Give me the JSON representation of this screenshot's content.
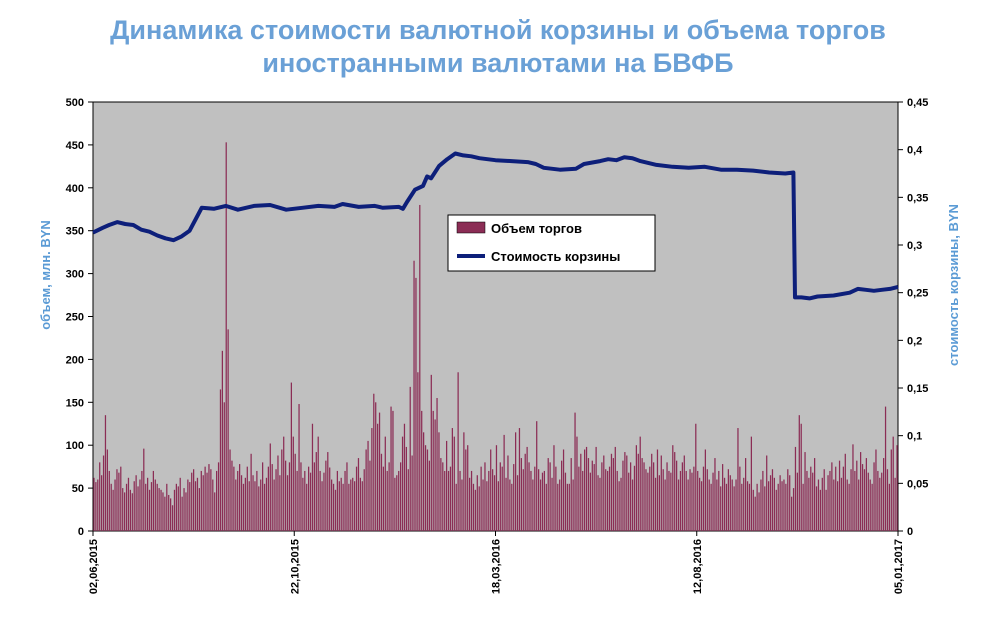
{
  "chart_data": {
    "type": "bar+line",
    "title_line1": "Динамика стоимости валютной корзины и объема торгов",
    "title_line2": "иностранными валютами на БВФБ",
    "ylabel_left": "объем, млн. BYN",
    "ylabel_right": "стоимость корзины, BYN",
    "ylim_left": [
      0,
      500
    ],
    "ylim_right": [
      0,
      0.45
    ],
    "yticks_left": [
      "0",
      "50",
      "100",
      "150",
      "200",
      "250",
      "300",
      "350",
      "400",
      "450",
      "500"
    ],
    "yticks_right": [
      "0",
      "0,05",
      "0,1",
      "0,15",
      "0,2",
      "0,25",
      "0,3",
      "0,35",
      "0,4",
      "0,45"
    ],
    "xticks": [
      "02,06,2015",
      "22,10,2015",
      "18,03,2016",
      "12,08,2016",
      "05,01,2017"
    ],
    "grid": false,
    "legend_position": "center",
    "legend": {
      "bars": "Объем торгов",
      "line": "Стоимость корзины"
    },
    "colors": {
      "bars": "#8b2d55",
      "line": "#0d1f7a",
      "plot_bg": "#c0c0c0"
    },
    "series": [
      {
        "name": "Объем торгов",
        "kind": "bar",
        "axis": "left",
        "values": [
          62,
          57,
          60,
          80,
          65,
          88,
          135,
          95,
          70,
          55,
          48,
          60,
          72,
          68,
          75,
          50,
          45,
          55,
          62,
          48,
          44,
          58,
          65,
          52,
          60,
          70,
          96,
          55,
          62,
          48,
          57,
          70,
          60,
          55,
          50,
          48,
          45,
          40,
          55,
          42,
          38,
          30,
          48,
          55,
          52,
          62,
          40,
          50,
          45,
          60,
          57,
          68,
          72,
          58,
          62,
          50,
          70,
          65,
          75,
          68,
          78,
          72,
          60,
          45,
          70,
          80,
          165,
          210,
          150,
          453,
          235,
          95,
          82,
          75,
          60,
          70,
          78,
          65,
          55,
          62,
          75,
          58,
          90,
          65,
          58,
          70,
          52,
          60,
          80,
          55,
          62,
          75,
          102,
          78,
          60,
          72,
          88,
          65,
          95,
          110,
          82,
          65,
          80,
          173,
          110,
          90,
          70,
          148,
          80,
          62,
          70,
          55,
          75,
          68,
          125,
          80,
          92,
          110,
          70,
          58,
          68,
          82,
          92,
          74,
          60,
          55,
          48,
          70,
          58,
          62,
          55,
          70,
          80,
          55,
          60,
          62,
          58,
          75,
          85,
          62,
          58,
          72,
          95,
          105,
          82,
          120,
          160,
          150,
          125,
          138,
          90,
          75,
          110,
          70,
          80,
          145,
          140,
          62,
          65,
          70,
          80,
          110,
          125,
          98,
          72,
          168,
          88,
          315,
          295,
          185,
          380,
          140,
          115,
          100,
          95,
          82,
          182,
          140,
          130,
          155,
          115,
          85,
          80,
          70,
          105,
          70,
          75,
          120,
          110,
          55,
          185,
          70,
          60,
          115,
          95,
          100,
          62,
          70,
          55,
          48,
          65,
          52,
          75,
          60,
          80,
          58,
          70,
          95,
          72,
          65,
          100,
          58,
          80,
          75,
          112,
          62,
          88,
          60,
          55,
          78,
          115,
          65,
          120,
          85,
          72,
          90,
          98,
          80,
          70,
          60,
          75,
          128,
          72,
          60,
          68,
          70,
          55,
          85,
          80,
          62,
          100,
          75,
          55,
          60,
          82,
          95,
          68,
          55,
          55,
          85,
          60,
          138,
          110,
          75,
          90,
          70,
          95,
          98,
          85,
          68,
          82,
          78,
          98,
          65,
          62,
          80,
          88,
          72,
          70,
          75,
          90,
          85,
          98,
          70,
          58,
          62,
          82,
          92,
          88,
          68,
          80,
          60,
          76,
          100,
          90,
          110,
          85,
          80,
          72,
          68,
          75,
          90,
          80,
          62,
          95,
          65,
          88,
          72,
          60,
          80,
          70,
          68,
          100,
          92,
          82,
          60,
          70,
          80,
          88,
          70,
          60,
          72,
          68,
          75,
          125,
          70,
          62,
          58,
          75,
          95,
          72,
          60,
          55,
          68,
          85,
          60,
          70,
          52,
          78,
          62,
          55,
          72,
          65,
          60,
          52,
          60,
          120,
          75,
          55,
          62,
          85,
          58,
          55,
          110,
          48,
          40,
          55,
          45,
          60,
          70,
          52,
          88,
          58,
          65,
          72,
          62,
          48,
          55,
          65,
          58,
          60,
          55,
          72,
          65,
          40,
          50,
          98,
          68,
          135,
          125,
          55,
          92,
          70,
          62,
          75,
          68,
          85,
          52,
          60,
          48,
          62,
          72,
          48,
          65,
          70,
          80,
          60,
          75,
          58,
          82,
          62,
          75,
          90,
          60,
          55,
          72,
          101,
          70,
          82,
          60,
          92,
          78,
          72,
          85,
          68,
          60,
          55,
          80,
          95,
          70,
          62,
          68,
          85,
          145,
          72,
          55,
          95,
          110,
          62,
          100
        ]
      },
      {
        "name": "Стоимость корзины",
        "kind": "line",
        "axis": "right",
        "points": [
          [
            0,
            0.313
          ],
          [
            0.012,
            0.318
          ],
          [
            0.02,
            0.321
          ],
          [
            0.03,
            0.324
          ],
          [
            0.04,
            0.322
          ],
          [
            0.05,
            0.321
          ],
          [
            0.06,
            0.316
          ],
          [
            0.07,
            0.314
          ],
          [
            0.08,
            0.31
          ],
          [
            0.09,
            0.307
          ],
          [
            0.1,
            0.305
          ],
          [
            0.11,
            0.309
          ],
          [
            0.12,
            0.315
          ],
          [
            0.135,
            0.339
          ],
          [
            0.15,
            0.338
          ],
          [
            0.165,
            0.341
          ],
          [
            0.18,
            0.337
          ],
          [
            0.2,
            0.341
          ],
          [
            0.22,
            0.342
          ],
          [
            0.24,
            0.337
          ],
          [
            0.26,
            0.339
          ],
          [
            0.28,
            0.341
          ],
          [
            0.3,
            0.34
          ],
          [
            0.31,
            0.343
          ],
          [
            0.33,
            0.34
          ],
          [
            0.35,
            0.341
          ],
          [
            0.36,
            0.339
          ],
          [
            0.38,
            0.34
          ],
          [
            0.385,
            0.338
          ],
          [
            0.39,
            0.345
          ],
          [
            0.4,
            0.358
          ],
          [
            0.41,
            0.362
          ],
          [
            0.415,
            0.372
          ],
          [
            0.42,
            0.37
          ],
          [
            0.43,
            0.383
          ],
          [
            0.44,
            0.39
          ],
          [
            0.45,
            0.396
          ],
          [
            0.46,
            0.394
          ],
          [
            0.47,
            0.393
          ],
          [
            0.48,
            0.391
          ],
          [
            0.5,
            0.389
          ],
          [
            0.52,
            0.388
          ],
          [
            0.54,
            0.387
          ],
          [
            0.55,
            0.385
          ],
          [
            0.56,
            0.381
          ],
          [
            0.58,
            0.379
          ],
          [
            0.6,
            0.38
          ],
          [
            0.61,
            0.385
          ],
          [
            0.63,
            0.388
          ],
          [
            0.64,
            0.39
          ],
          [
            0.65,
            0.389
          ],
          [
            0.66,
            0.392
          ],
          [
            0.67,
            0.391
          ],
          [
            0.68,
            0.388
          ],
          [
            0.7,
            0.384
          ],
          [
            0.72,
            0.382
          ],
          [
            0.74,
            0.381
          ],
          [
            0.76,
            0.382
          ],
          [
            0.78,
            0.379
          ],
          [
            0.8,
            0.379
          ],
          [
            0.82,
            0.378
          ],
          [
            0.84,
            0.376
          ],
          [
            0.86,
            0.375
          ],
          [
            0.87,
            0.376
          ],
          [
            0.872,
            0.245
          ],
          [
            0.88,
            0.245
          ],
          [
            0.89,
            0.244
          ],
          [
            0.9,
            0.246
          ],
          [
            0.92,
            0.247
          ],
          [
            0.94,
            0.25
          ],
          [
            0.95,
            0.254
          ],
          [
            0.96,
            0.253
          ],
          [
            0.97,
            0.252
          ],
          [
            0.98,
            0.253
          ],
          [
            0.99,
            0.254
          ],
          [
            1.0,
            0.256
          ]
        ]
      }
    ]
  }
}
